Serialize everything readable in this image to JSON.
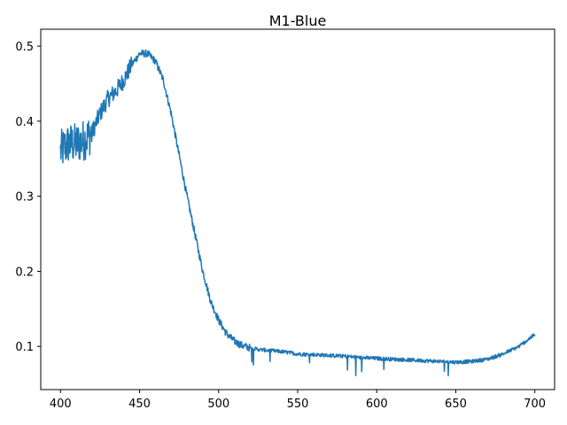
{
  "chart_data": {
    "type": "line",
    "title": "M1-Blue",
    "xlabel": "",
    "ylabel": "",
    "xlim": [
      387.5,
      712.5
    ],
    "ylim": [
      0.0425,
      0.5225
    ],
    "xticks": [
      400,
      450,
      500,
      550,
      600,
      650,
      700
    ],
    "yticks": [
      0.1,
      0.2,
      0.3,
      0.4,
      0.5
    ],
    "grid": false,
    "legend": "none",
    "series": [
      {
        "color": "#1f77b4",
        "x": [
          400,
          405,
          410,
          415,
          420,
          425,
          430,
          435,
          440,
          445,
          450,
          455,
          460,
          465,
          470,
          475,
          480,
          485,
          490,
          495,
          500,
          505,
          510,
          515,
          520,
          525,
          530,
          540,
          550,
          560,
          570,
          580,
          590,
          600,
          610,
          620,
          630,
          640,
          650,
          660,
          670,
          680,
          690,
          700
        ],
        "y": [
          0.36,
          0.37,
          0.37,
          0.375,
          0.385,
          0.41,
          0.43,
          0.44,
          0.455,
          0.475,
          0.49,
          0.49,
          0.48,
          0.455,
          0.41,
          0.355,
          0.3,
          0.25,
          0.2,
          0.16,
          0.135,
          0.117,
          0.107,
          0.101,
          0.098,
          0.096,
          0.095,
          0.093,
          0.09,
          0.089,
          0.088,
          0.087,
          0.085,
          0.084,
          0.083,
          0.082,
          0.081,
          0.08,
          0.079,
          0.08,
          0.083,
          0.09,
          0.1,
          0.116
        ]
      }
    ]
  }
}
